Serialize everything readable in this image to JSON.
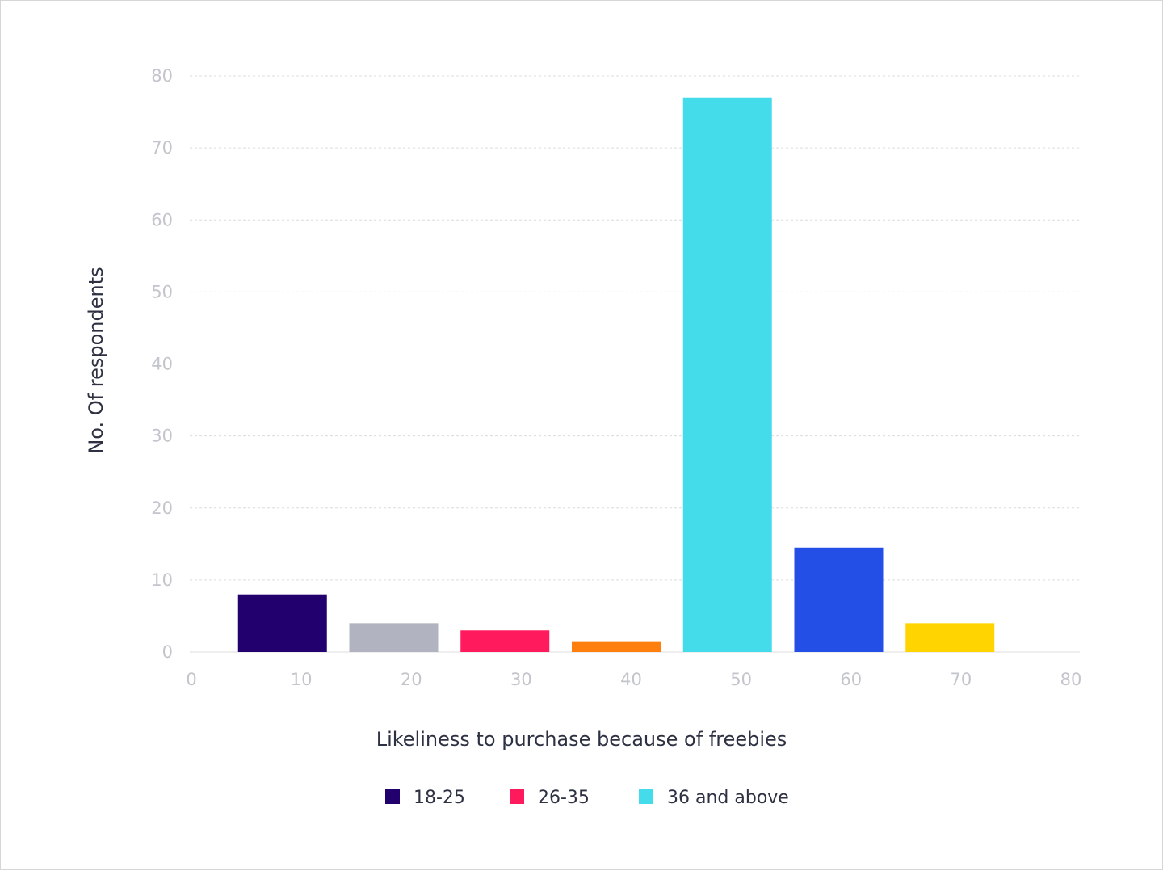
{
  "chart_data": {
    "type": "bar",
    "xlabel": "Likeliness to purchase because of freebies",
    "ylabel": "No. Of respondents",
    "xlim": [
      0,
      80
    ],
    "ylim": [
      0,
      80
    ],
    "x_ticks": [
      "0",
      "10",
      "20",
      "30",
      "40",
      "50",
      "60",
      "70",
      "80"
    ],
    "y_ticks": [
      "0",
      "10",
      "20",
      "30",
      "40",
      "50",
      "60",
      "70",
      "80"
    ],
    "grid": true,
    "bars": [
      {
        "x": 8.33,
        "value": 8,
        "color": "#22006e"
      },
      {
        "x": 18.33,
        "value": 4,
        "color": "#b1b3c0"
      },
      {
        "x": 28.33,
        "value": 3,
        "color": "#ff1a5e"
      },
      {
        "x": 38.33,
        "value": 1.5,
        "color": "#ff7f0e"
      },
      {
        "x": 48.33,
        "value": 77,
        "color": "#44dceb"
      },
      {
        "x": 58.33,
        "value": 14.5,
        "color": "#234fe6"
      },
      {
        "x": 68.33,
        "value": 4,
        "color": "#ffd400"
      }
    ],
    "legend_position": "bottom-center",
    "legend": [
      {
        "label": "18-25",
        "color": "#22006e"
      },
      {
        "label": "26-35",
        "color": "#ff1a5e"
      },
      {
        "label": "36 and above",
        "color": "#44dceb"
      }
    ]
  }
}
